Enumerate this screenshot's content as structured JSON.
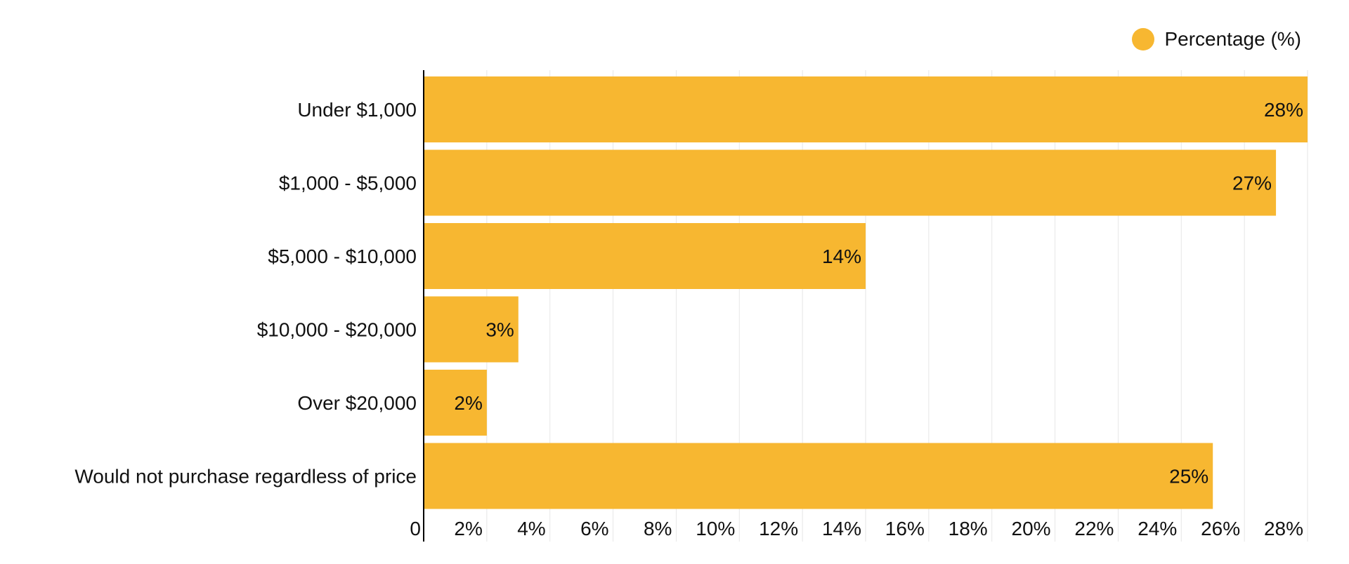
{
  "chart_data": {
    "type": "bar",
    "orientation": "horizontal",
    "categories": [
      "Under $1,000",
      "$1,000 - $5,000",
      "$5,000 - $10,000",
      "$10,000 - $20,000",
      "Over $20,000",
      "Would not purchase regardless of price"
    ],
    "series": [
      {
        "name": "Percentage (%)",
        "values": [
          28,
          27,
          14,
          3,
          2,
          25
        ],
        "display_values": [
          28,
          27,
          14,
          3,
          2,
          25
        ],
        "color": "#F7B731"
      }
    ],
    "data_labels": [
      "28%",
      "27%",
      "14%",
      "3%",
      "2%",
      "25%"
    ],
    "x_ticks": [
      0,
      2,
      4,
      6,
      8,
      10,
      12,
      14,
      16,
      18,
      20,
      22,
      24,
      26,
      28
    ],
    "x_tick_labels": [
      "0",
      "2%",
      "4%",
      "6%",
      "8%",
      "10%",
      "12%",
      "14%",
      "16%",
      "18%",
      "20%",
      "22%",
      "24%",
      "26%",
      "28%"
    ],
    "xlim": [
      0,
      28
    ],
    "grid": true,
    "legend": {
      "position": "top-right",
      "label": "Percentage (%)"
    },
    "grid_color": "#E6E6E6",
    "axis_color": "#000000",
    "title": "",
    "xlabel": "",
    "ylabel": ""
  }
}
